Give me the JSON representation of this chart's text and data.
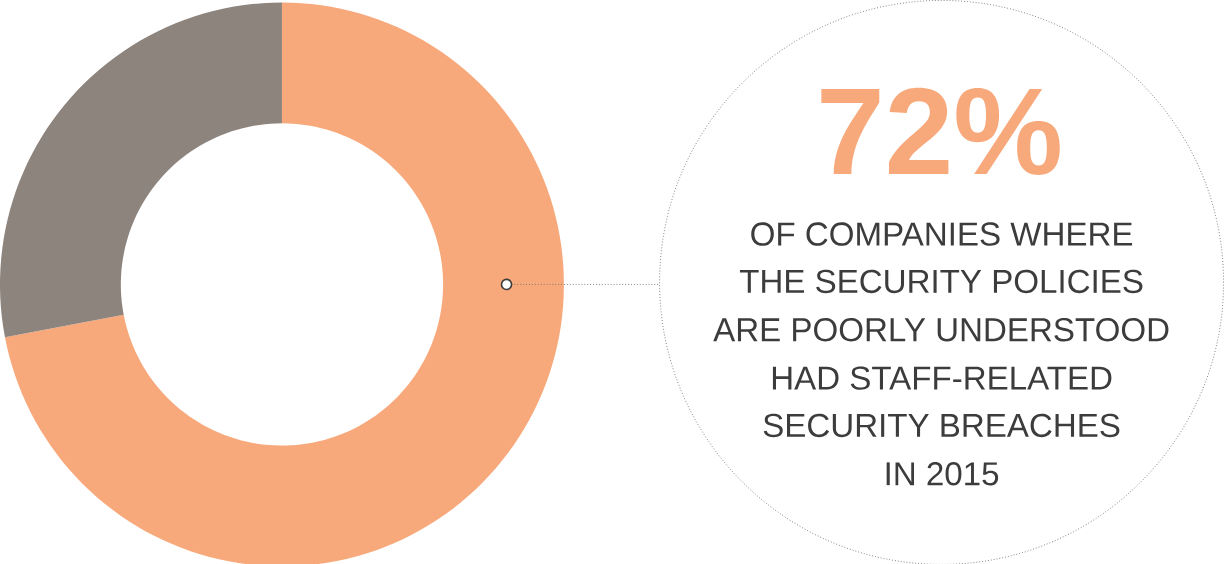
{
  "chart_data": {
    "type": "donut",
    "categories": [
      null,
      null
    ],
    "values": [
      72,
      28
    ],
    "colors": [
      "#f8a97b",
      "#8e847e"
    ],
    "value_labels": [
      "72%",
      null
    ],
    "annotations": [
      "OF COMPANIES WHERE",
      "THE SECURITY POLICIES",
      "ARE POORLY UNDERSTOOD",
      "HAD STAFF-RELATED",
      "SECURITY BREACHES",
      "IN 2015"
    ]
  }
}
